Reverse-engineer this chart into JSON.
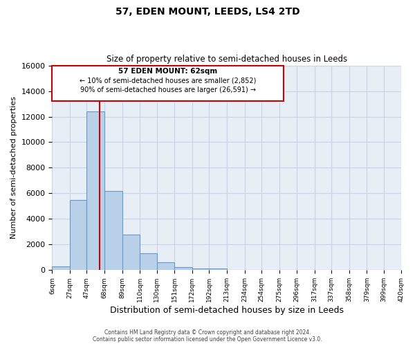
{
  "title": "57, EDEN MOUNT, LEEDS, LS4 2TD",
  "subtitle": "Size of property relative to semi-detached houses in Leeds",
  "xlabel": "Distribution of semi-detached houses by size in Leeds",
  "ylabel": "Number of semi-detached properties",
  "bin_labels": [
    "6sqm",
    "27sqm",
    "47sqm",
    "68sqm",
    "89sqm",
    "110sqm",
    "130sqm",
    "151sqm",
    "172sqm",
    "192sqm",
    "213sqm",
    "234sqm",
    "254sqm",
    "275sqm",
    "296sqm",
    "317sqm",
    "337sqm",
    "358sqm",
    "379sqm",
    "399sqm",
    "420sqm"
  ],
  "bar_values": [
    300,
    5500,
    12400,
    6200,
    2800,
    1300,
    600,
    250,
    150,
    100,
    0,
    0,
    0,
    0,
    0,
    0,
    0,
    0,
    0,
    0
  ],
  "ylim": [
    0,
    16000
  ],
  "yticks": [
    0,
    2000,
    4000,
    6000,
    8000,
    10000,
    12000,
    14000,
    16000
  ],
  "bar_color": "#b8d0e8",
  "bar_edge_color": "#6699cc",
  "property_line_x": 62,
  "property_line_color": "#cc0000",
  "annotation_title": "57 EDEN MOUNT: 62sqm",
  "annotation_line1": "← 10% of semi-detached houses are smaller (2,852)",
  "annotation_line2": "90% of semi-detached houses are larger (26,591) →",
  "annotation_box_color": "#ffffff",
  "annotation_box_edge": "#cc0000",
  "footnote1": "Contains HM Land Registry data © Crown copyright and database right 2024.",
  "footnote2": "Contains public sector information licensed under the Open Government Licence v3.0.",
  "background_color": "#ffffff",
  "plot_bg_color": "#e8eef6",
  "grid_color": "#c8d4e4",
  "bin_edges": [
    6,
    27,
    47,
    68,
    89,
    110,
    130,
    151,
    172,
    192,
    213,
    234,
    254,
    275,
    296,
    317,
    337,
    358,
    379,
    399,
    420
  ]
}
